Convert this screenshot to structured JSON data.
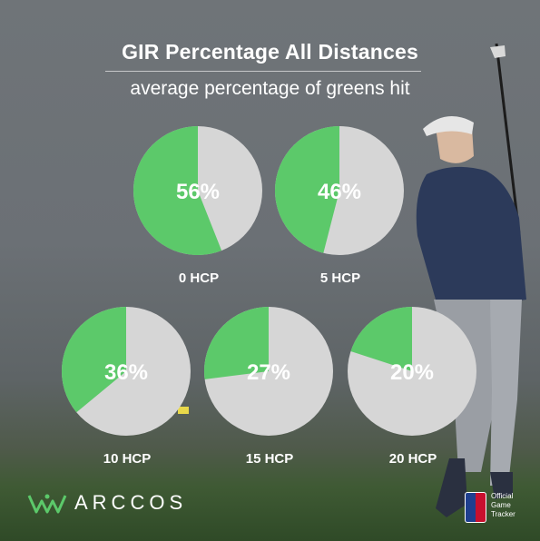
{
  "header": {
    "title": "GIR Percentage All Distances",
    "subtitle": "average percentage of greens hit"
  },
  "chart_data": {
    "type": "pie",
    "title": "GIR Percentage All Distances",
    "subtitle": "average percentage of greens hit",
    "categories": [
      "0 HCP",
      "5 HCP",
      "10 HCP",
      "15 HCP",
      "20 HCP"
    ],
    "values": [
      56,
      46,
      36,
      27,
      20
    ],
    "value_labels": [
      "56%",
      "46%",
      "36%",
      "27%",
      "20%"
    ],
    "unit": "%"
  },
  "colors": {
    "hit": "#5cc96a",
    "miss": "#d6d6d6",
    "text": "#ffffff",
    "brand_green": "#5cc96a"
  },
  "footer": {
    "brand": "ARCCOS",
    "badge_text": "Official Game Tracker"
  },
  "icons": {
    "brand": "arccos-crown-icon",
    "badge": "pga-tour-shield-icon"
  }
}
